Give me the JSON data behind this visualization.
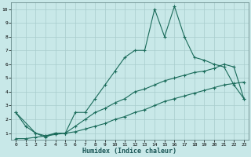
{
  "title": "",
  "xlabel": "Humidex (Indice chaleur)",
  "background_color": "#c8e8e8",
  "grid_color": "#a8cccc",
  "line_color": "#1a6b5a",
  "xlim": [
    -0.5,
    23.5
  ],
  "ylim": [
    0.5,
    10.5
  ],
  "xticks": [
    0,
    1,
    2,
    3,
    4,
    5,
    6,
    7,
    8,
    9,
    10,
    11,
    12,
    13,
    14,
    15,
    16,
    17,
    18,
    19,
    20,
    21,
    22,
    23
  ],
  "yticks": [
    1,
    2,
    3,
    4,
    5,
    6,
    7,
    8,
    9,
    10
  ],
  "line1_x": [
    0,
    1,
    2,
    3,
    4,
    5,
    6,
    7,
    8,
    9,
    10,
    11,
    12,
    13,
    14,
    15,
    16,
    17,
    18,
    19,
    20,
    21,
    22,
    23
  ],
  "line1_y": [
    2.5,
    1.5,
    1.0,
    0.7,
    1.0,
    1.0,
    2.5,
    2.5,
    3.5,
    4.5,
    5.5,
    6.5,
    7.0,
    7.0,
    10.0,
    8.0,
    10.2,
    8.0,
    6.5,
    6.3,
    6.0,
    5.8,
    4.5,
    3.5
  ],
  "line2_x": [
    0,
    2,
    3,
    4,
    5,
    6,
    7,
    8,
    9,
    10,
    11,
    12,
    13,
    14,
    15,
    16,
    17,
    18,
    19,
    20,
    21,
    22,
    23
  ],
  "line2_y": [
    2.5,
    1.0,
    0.8,
    1.0,
    1.0,
    1.5,
    2.0,
    2.5,
    2.8,
    3.2,
    3.5,
    4.0,
    4.2,
    4.5,
    4.8,
    5.0,
    5.2,
    5.4,
    5.5,
    5.7,
    6.0,
    5.8,
    3.5
  ],
  "line3_x": [
    0,
    1,
    2,
    3,
    4,
    5,
    6,
    7,
    8,
    9,
    10,
    11,
    12,
    13,
    14,
    15,
    16,
    17,
    18,
    19,
    20,
    21,
    22,
    23
  ],
  "line3_y": [
    0.6,
    0.6,
    0.7,
    0.8,
    0.9,
    1.0,
    1.1,
    1.3,
    1.5,
    1.7,
    2.0,
    2.2,
    2.5,
    2.7,
    3.0,
    3.3,
    3.5,
    3.7,
    3.9,
    4.1,
    4.3,
    4.5,
    4.6,
    4.7
  ]
}
